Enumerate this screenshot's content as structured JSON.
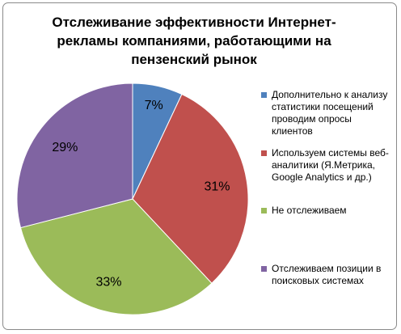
{
  "chart_data": {
    "type": "pie",
    "title_lines": [
      "Отслеживание эффективности Интернет-",
      "рекламы компаниями, работающими на",
      "пензенский рынок"
    ],
    "categories": [
      "Дополнительно к анализу статистики посещений проводим опросы клиентов",
      "Используем системы веб-аналитики (Я.Метрика, Google Analytics и др.)",
      "Не отслеживаем",
      "Отслеживаем позиции в поисковых системах"
    ],
    "values": [
      7,
      31,
      33,
      29
    ],
    "data_labels": [
      "7%",
      "31%",
      "33%",
      "29%"
    ],
    "colors": [
      "#4f81bd",
      "#c0504d",
      "#9bbb59",
      "#8064a2"
    ],
    "legend_position": "right",
    "start_angle": "12 o'clock, clockwise"
  }
}
